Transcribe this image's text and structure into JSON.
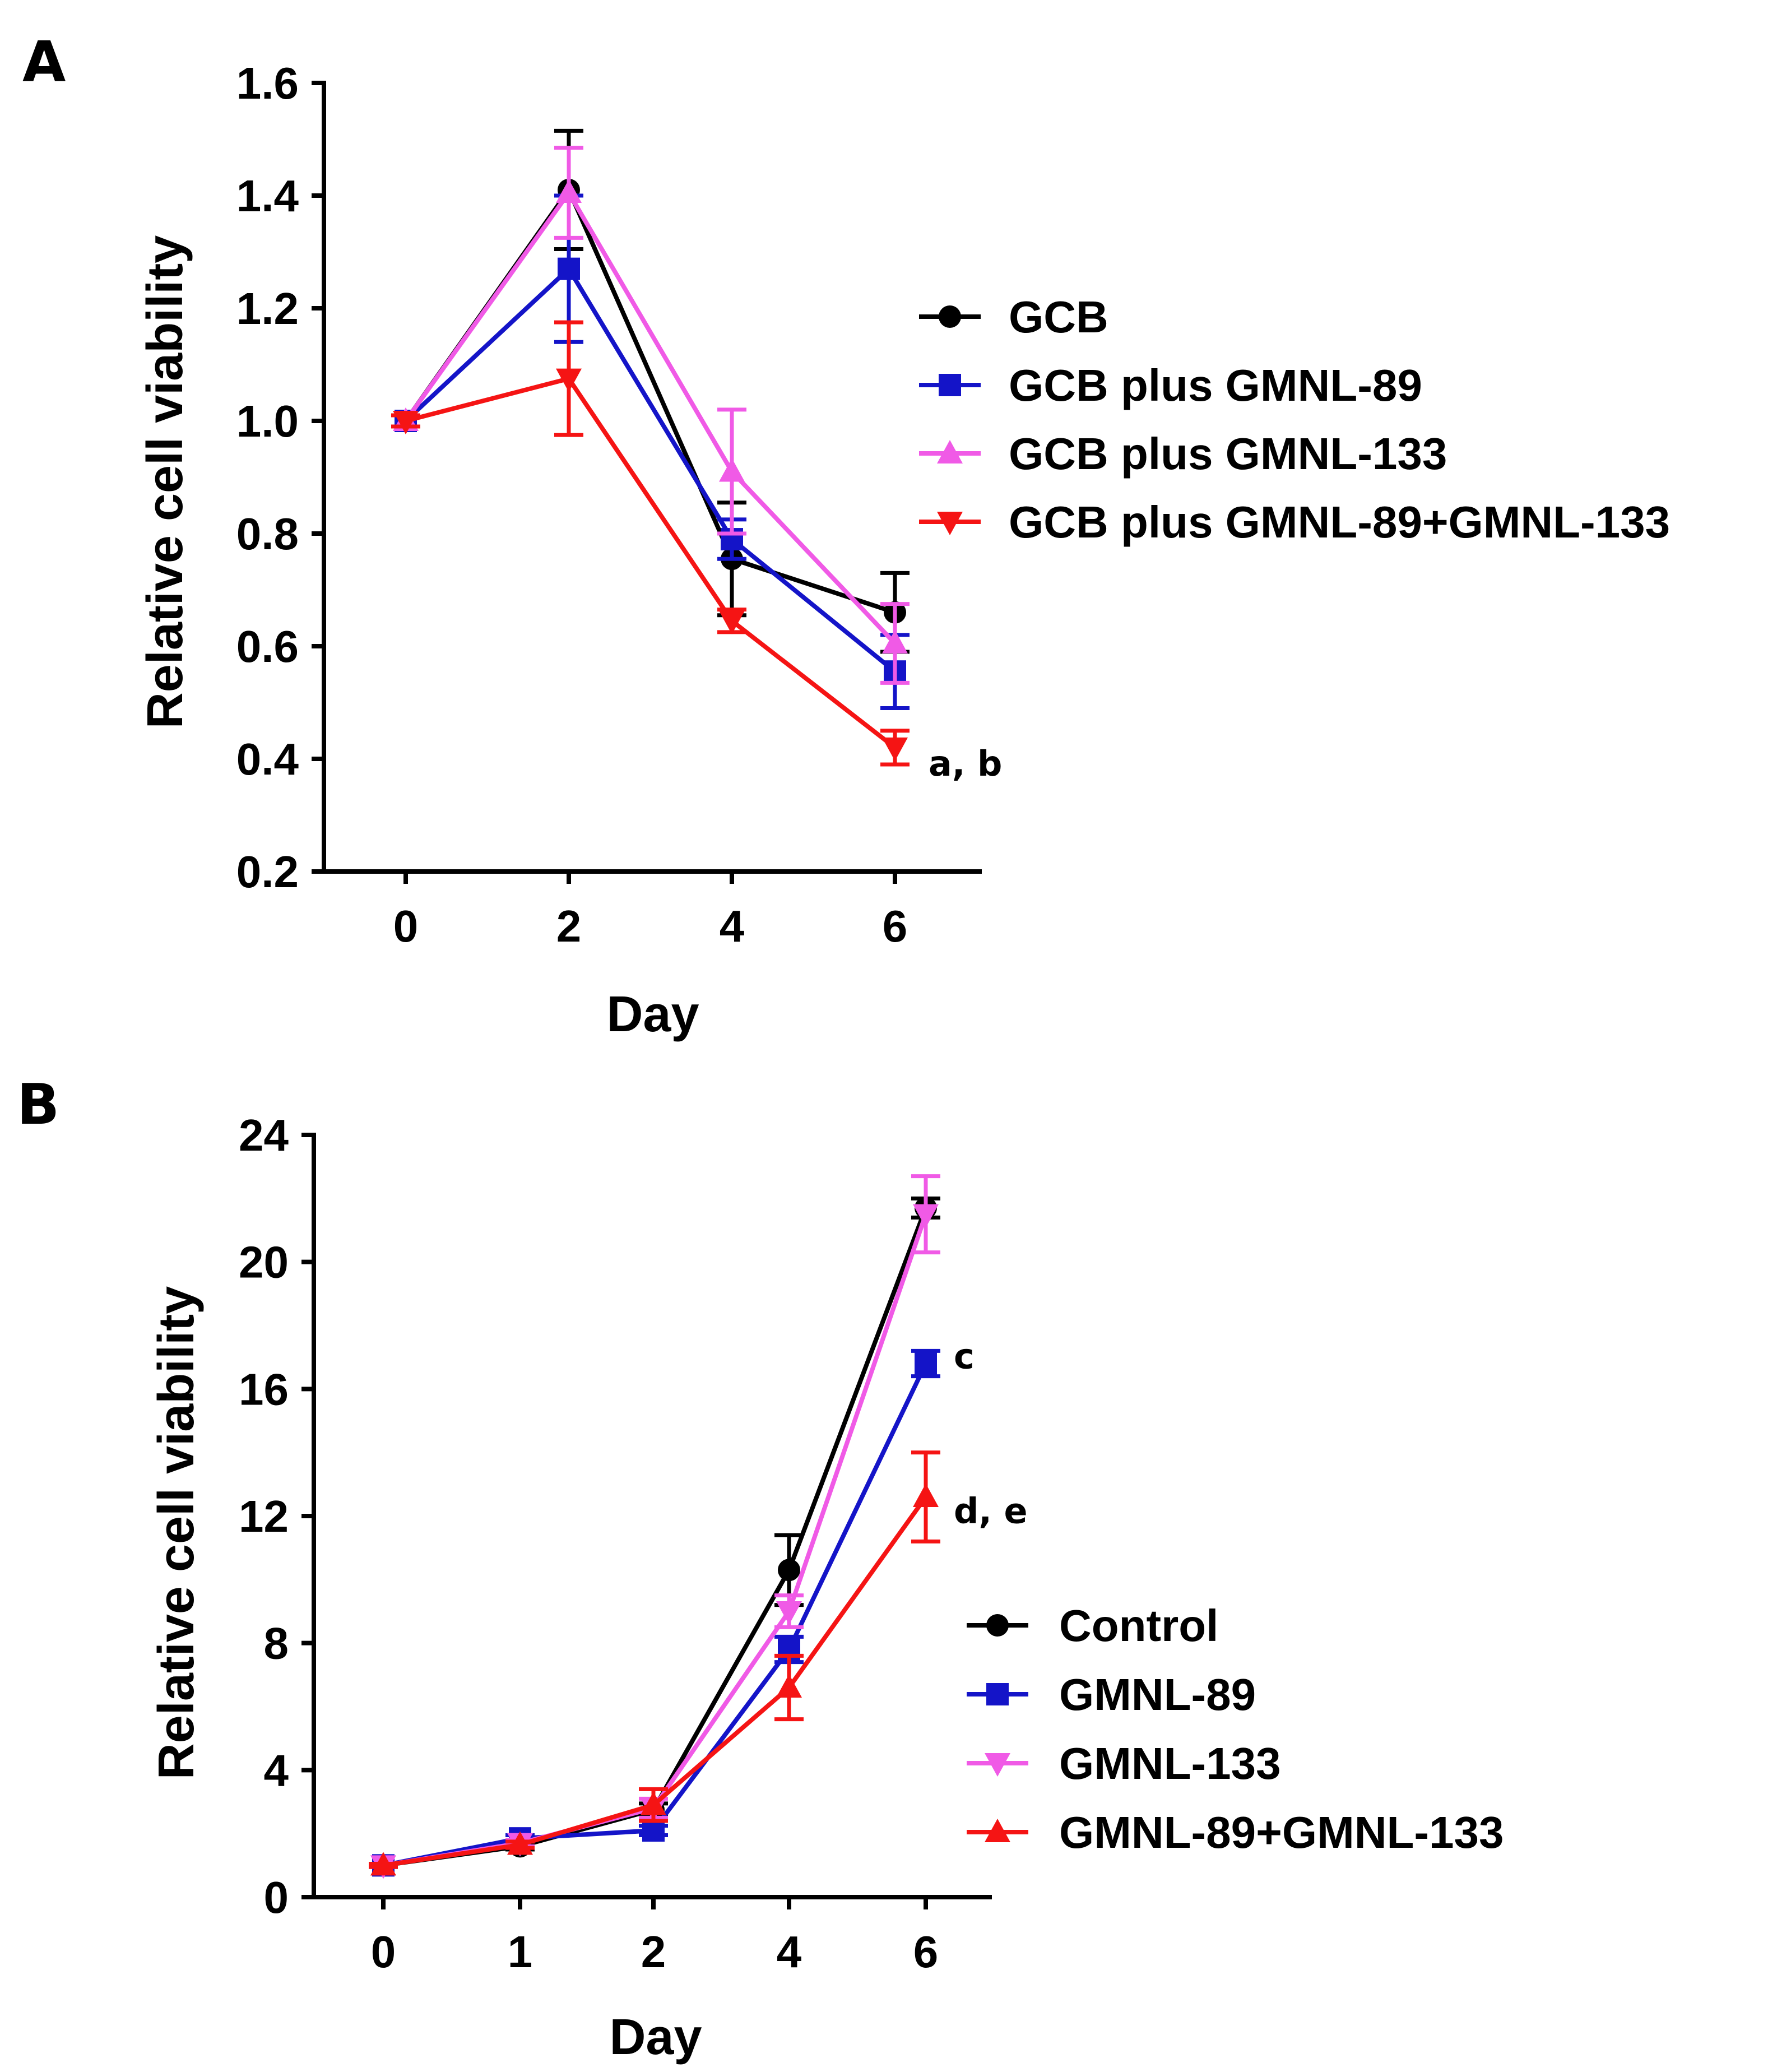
{
  "chart_data": [
    {
      "panel": "A",
      "type": "line",
      "xlabel": "Day",
      "ylabel": "Relative cell viability",
      "x": [
        0,
        2,
        4,
        6
      ],
      "ylim": [
        0.2,
        1.6
      ],
      "yticks": [
        "0.2",
        "0.4",
        "0.6",
        "0.8",
        "1.0",
        "1.2",
        "1.4",
        "1.6"
      ],
      "xticks": [
        "0",
        "2",
        "4",
        "6"
      ],
      "legend_position": "right",
      "series": [
        {
          "name": "GCB",
          "color": "#000000",
          "marker": "circle",
          "values": [
            1.0,
            1.41,
            0.755,
            0.66
          ],
          "errors": [
            0.01,
            0.105,
            0.1,
            0.07
          ]
        },
        {
          "name": "GCB plus GMNL-89",
          "color": "#1414c8",
          "marker": "square",
          "values": [
            1.0,
            1.27,
            0.79,
            0.555
          ],
          "errors": [
            0.01,
            0.13,
            0.035,
            0.065
          ]
        },
        {
          "name": "GCB plus GMNL-133",
          "color": "#f05ae6",
          "marker": "triangle-up",
          "values": [
            1.0,
            1.405,
            0.91,
            0.605
          ],
          "errors": [
            0.01,
            0.08,
            0.11,
            0.07
          ]
        },
        {
          "name": "GCB plus GMNL-89+GMNL-133",
          "color": "#f51414",
          "marker": "triangle-down",
          "values": [
            1.0,
            1.075,
            0.645,
            0.42
          ],
          "errors": [
            0.01,
            0.1,
            0.02,
            0.03
          ]
        }
      ],
      "annotations": [
        {
          "text": "a, b",
          "x": 6,
          "y": 0.4
        }
      ]
    },
    {
      "panel": "B",
      "type": "line",
      "xlabel": "Day",
      "ylabel": "Relative cell viability",
      "x": [
        "0",
        "1",
        "2",
        "4",
        "6"
      ],
      "ylim": [
        0,
        24
      ],
      "yticks": [
        "0",
        "4",
        "8",
        "12",
        "16",
        "20",
        "24"
      ],
      "xticks": [
        "0",
        "1",
        "2",
        "4",
        "6"
      ],
      "legend_position": "lower-right",
      "series": [
        {
          "name": "Control",
          "color": "#000000",
          "marker": "circle",
          "values": [
            1.0,
            1.6,
            2.75,
            10.3,
            21.7
          ],
          "errors": [
            0.05,
            0.1,
            0.2,
            1.1,
            0.3
          ]
        },
        {
          "name": "GMNL-89",
          "color": "#1414c8",
          "marker": "square",
          "values": [
            1.0,
            1.85,
            2.1,
            7.8,
            16.8
          ],
          "errors": [
            0.05,
            0.1,
            0.15,
            0.4,
            0.4
          ]
        },
        {
          "name": "GMNL-133",
          "color": "#f05ae6",
          "marker": "triangle-down",
          "values": [
            1.0,
            1.7,
            2.8,
            9.0,
            21.5
          ],
          "errors": [
            0.05,
            0.1,
            0.3,
            0.5,
            1.2
          ]
        },
        {
          "name": "GMNL-89+GMNL-133",
          "color": "#f51414",
          "marker": "triangle-up",
          "values": [
            1.0,
            1.65,
            2.9,
            6.6,
            12.6
          ],
          "errors": [
            0.05,
            0.1,
            0.5,
            1.0,
            1.4
          ]
        }
      ],
      "annotations": [
        {
          "text": "c",
          "x": "6",
          "y": 17.0
        },
        {
          "text": "d, e",
          "x": "6",
          "y": 12.4
        }
      ]
    }
  ]
}
